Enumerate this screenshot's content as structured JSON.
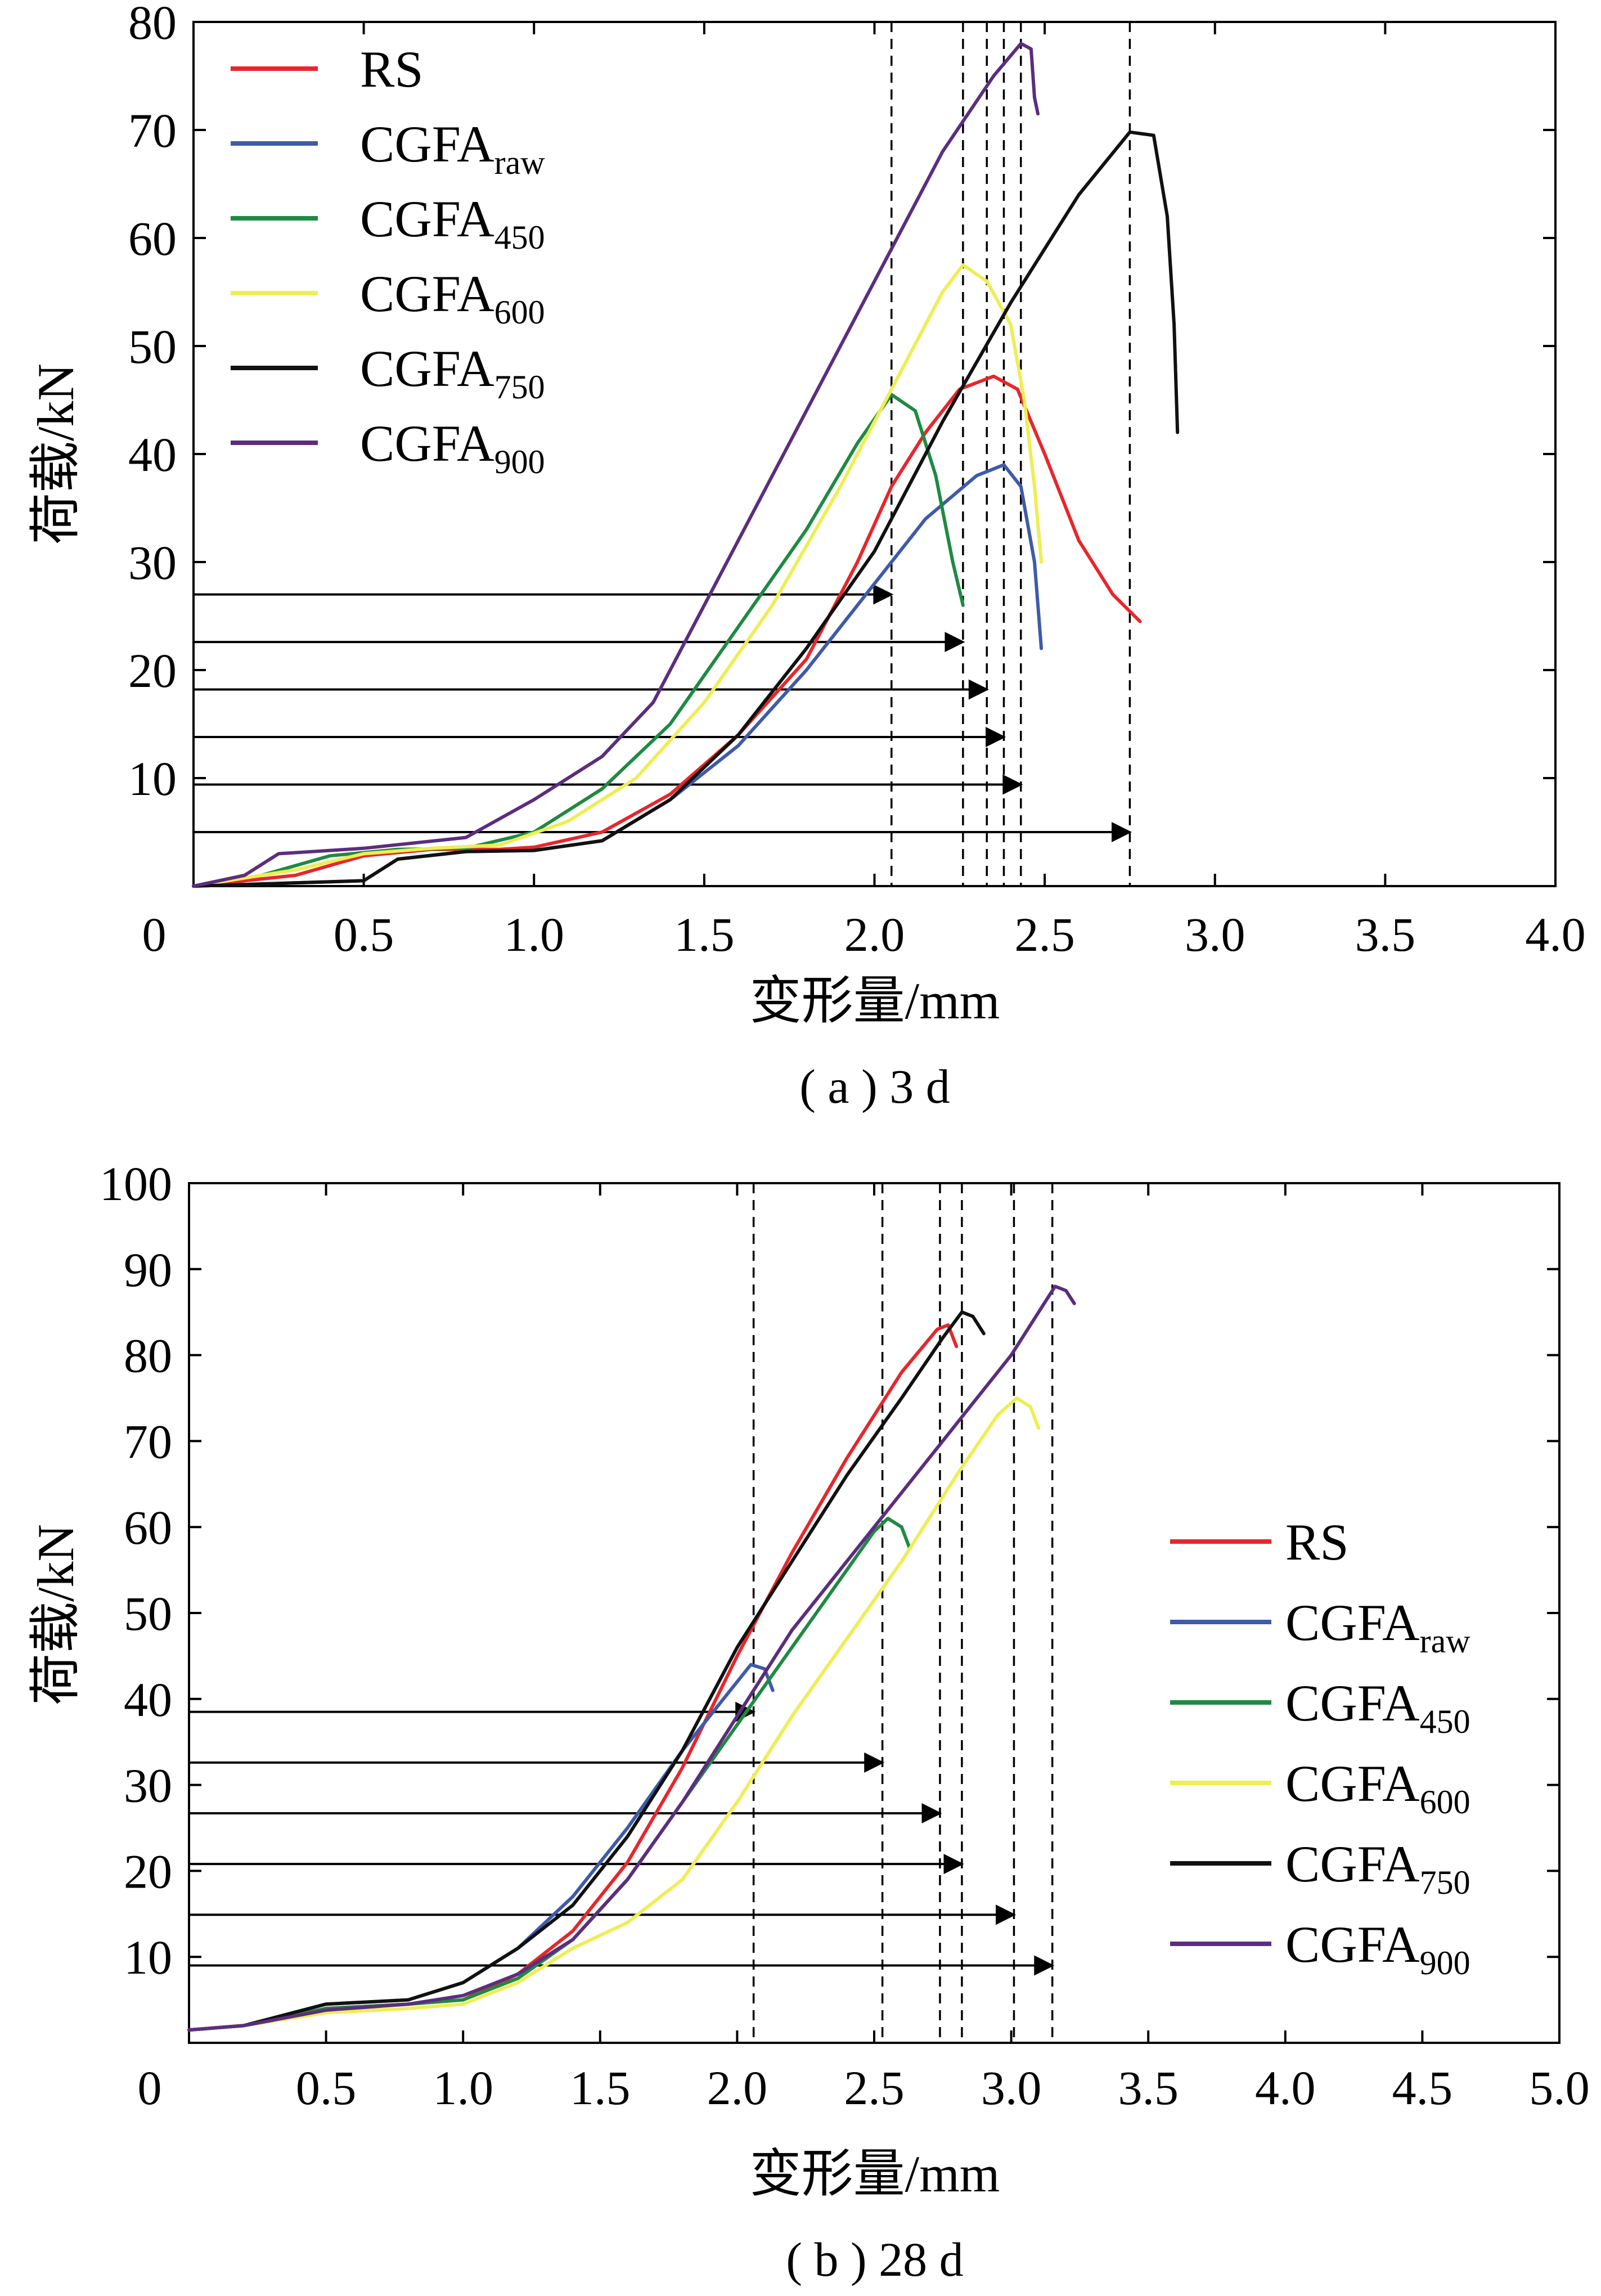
{
  "chart_data": [
    {
      "type": "line",
      "caption": "( a ) 3 d",
      "xlabel": "变形量/mm",
      "ylabel": "荷载/kN",
      "xlim": [
        0,
        4.0
      ],
      "ylim": [
        0,
        80
      ],
      "xticks": [
        "0",
        "0.5",
        "1.0",
        "1.5",
        "2.0",
        "2.5",
        "3.0",
        "3.5",
        "4.0"
      ],
      "yticks": [
        "10",
        "20",
        "30",
        "40",
        "50",
        "60",
        "70",
        "80"
      ],
      "legend_position": "top-left",
      "series": [
        {
          "name": "RS",
          "name_main": "RS",
          "name_sub": "",
          "color": "#e8262b",
          "points": [
            [
              0,
              0
            ],
            [
              0.3,
              1
            ],
            [
              0.5,
              2.8
            ],
            [
              0.7,
              3.4
            ],
            [
              0.9,
              3.4
            ],
            [
              1.0,
              3.6
            ],
            [
              1.2,
              5
            ],
            [
              1.4,
              8.5
            ],
            [
              1.6,
              14
            ],
            [
              1.8,
              21
            ],
            [
              1.95,
              30
            ],
            [
              2.05,
              37
            ],
            [
              2.15,
              42
            ],
            [
              2.25,
              46
            ],
            [
              2.35,
              47.2
            ],
            [
              2.42,
              46
            ],
            [
              2.5,
              40
            ],
            [
              2.6,
              32
            ],
            [
              2.7,
              27
            ],
            [
              2.78,
              24.5
            ]
          ]
        },
        {
          "name": "CGFAraw",
          "name_main": "CGFA",
          "name_sub": "raw",
          "color": "#3f5aa8",
          "points": [
            [
              0,
              0
            ],
            [
              0.5,
              0.5
            ],
            [
              0.6,
              2.5
            ],
            [
              0.8,
              3.2
            ],
            [
              1.0,
              3.3
            ],
            [
              1.2,
              4.2
            ],
            [
              1.4,
              8
            ],
            [
              1.6,
              13
            ],
            [
              1.8,
              20
            ],
            [
              2.0,
              28
            ],
            [
              2.15,
              34
            ],
            [
              2.3,
              38
            ],
            [
              2.38,
              39
            ],
            [
              2.43,
              37
            ],
            [
              2.47,
              30
            ],
            [
              2.49,
              22
            ]
          ]
        },
        {
          "name": "CGFA450",
          "name_main": "CGFA",
          "name_sub": "450",
          "color": "#1e8a42",
          "points": [
            [
              0,
              0
            ],
            [
              0.2,
              1
            ],
            [
              0.4,
              2.8
            ],
            [
              0.6,
              3.4
            ],
            [
              0.8,
              3.5
            ],
            [
              1.0,
              5
            ],
            [
              1.2,
              9
            ],
            [
              1.4,
              15
            ],
            [
              1.6,
              24
            ],
            [
              1.8,
              33
            ],
            [
              1.95,
              41
            ],
            [
              2.05,
              45.5
            ],
            [
              2.12,
              44
            ],
            [
              2.18,
              38
            ],
            [
              2.23,
              30
            ],
            [
              2.26,
              26
            ]
          ]
        },
        {
          "name": "CGFA600",
          "name_main": "CGFA",
          "name_sub": "600",
          "color": "#eeee55",
          "points": [
            [
              0,
              0
            ],
            [
              0.3,
              1.5
            ],
            [
              0.5,
              3
            ],
            [
              0.7,
              3.5
            ],
            [
              0.9,
              3.8
            ],
            [
              1.1,
              6
            ],
            [
              1.3,
              10
            ],
            [
              1.5,
              17
            ],
            [
              1.7,
              26
            ],
            [
              1.9,
              37
            ],
            [
              2.05,
              46
            ],
            [
              2.2,
              55
            ],
            [
              2.26,
              57.5
            ],
            [
              2.33,
              56
            ],
            [
              2.4,
              52
            ],
            [
              2.44,
              45
            ],
            [
              2.47,
              37
            ],
            [
              2.49,
              30
            ]
          ]
        },
        {
          "name": "CGFA750",
          "name_main": "CGFA",
          "name_sub": "750",
          "color": "#111111",
          "points": [
            [
              0,
              0
            ],
            [
              0.5,
              0.5
            ],
            [
              0.6,
              2.5
            ],
            [
              0.8,
              3.2
            ],
            [
              1.0,
              3.3
            ],
            [
              1.2,
              4.2
            ],
            [
              1.4,
              8
            ],
            [
              1.6,
              14
            ],
            [
              1.8,
              22
            ],
            [
              2.0,
              31
            ],
            [
              2.2,
              43
            ],
            [
              2.4,
              54
            ],
            [
              2.6,
              64
            ],
            [
              2.75,
              69.8
            ],
            [
              2.82,
              69.5
            ],
            [
              2.86,
              62
            ],
            [
              2.88,
              52
            ],
            [
              2.89,
              42
            ]
          ]
        },
        {
          "name": "CGFA900",
          "name_main": "CGFA",
          "name_sub": "900",
          "color": "#5c2d7e",
          "points": [
            [
              0,
              0
            ],
            [
              0.15,
              1
            ],
            [
              0.25,
              3
            ],
            [
              0.5,
              3.5
            ],
            [
              0.8,
              4.5
            ],
            [
              1.0,
              8
            ],
            [
              1.2,
              12
            ],
            [
              1.35,
              17
            ],
            [
              1.5,
              26
            ],
            [
              1.7,
              38
            ],
            [
              1.9,
              50
            ],
            [
              2.05,
              59
            ],
            [
              2.2,
              68
            ],
            [
              2.35,
              75
            ],
            [
              2.43,
              78
            ],
            [
              2.46,
              77.5
            ],
            [
              2.47,
              73
            ],
            [
              2.48,
              71.5
            ]
          ]
        }
      ],
      "reference_lines_x": [
        2.05,
        2.26,
        2.33,
        2.38,
        2.43,
        2.75
      ]
    },
    {
      "type": "line",
      "caption": "( b ) 28 d",
      "xlabel": "变形量/mm",
      "ylabel": "荷载/kN",
      "xlim": [
        0,
        5.0
      ],
      "ylim": [
        0,
        100
      ],
      "xticks": [
        "0",
        "0.5",
        "1.0",
        "1.5",
        "2.0",
        "2.5",
        "3.0",
        "3.5",
        "4.0",
        "4.5",
        "5.0"
      ],
      "yticks": [
        "10",
        "20",
        "30",
        "40",
        "50",
        "60",
        "70",
        "80",
        "90",
        "100"
      ],
      "legend_position": "center-right",
      "series": [
        {
          "name": "RS",
          "name_main": "RS",
          "name_sub": "",
          "color": "#e8262b",
          "points": [
            [
              0,
              1.5
            ],
            [
              0.2,
              2
            ],
            [
              0.5,
              4
            ],
            [
              0.8,
              4.5
            ],
            [
              1.0,
              5
            ],
            [
              1.2,
              8
            ],
            [
              1.4,
              13
            ],
            [
              1.6,
              21
            ],
            [
              1.8,
              32
            ],
            [
              2.0,
              45
            ],
            [
              2.2,
              57
            ],
            [
              2.4,
              68
            ],
            [
              2.6,
              78
            ],
            [
              2.73,
              83
            ],
            [
              2.77,
              83.5
            ],
            [
              2.8,
              81
            ]
          ]
        },
        {
          "name": "CGFAraw",
          "name_main": "CGFA",
          "name_sub": "raw",
          "color": "#3f5aa8",
          "points": [
            [
              0,
              1.5
            ],
            [
              0.2,
              2
            ],
            [
              0.5,
              4.5
            ],
            [
              0.8,
              5
            ],
            [
              1.0,
              7
            ],
            [
              1.2,
              11
            ],
            [
              1.4,
              17
            ],
            [
              1.6,
              25
            ],
            [
              1.8,
              34
            ],
            [
              1.95,
              40
            ],
            [
              2.05,
              44
            ],
            [
              2.1,
              43.5
            ],
            [
              2.13,
              41
            ]
          ]
        },
        {
          "name": "CGFA450",
          "name_main": "CGFA",
          "name_sub": "450",
          "color": "#1e8a42",
          "points": [
            [
              0,
              1.5
            ],
            [
              0.2,
              2
            ],
            [
              0.5,
              4
            ],
            [
              0.8,
              4.5
            ],
            [
              1.0,
              5
            ],
            [
              1.2,
              7.5
            ],
            [
              1.4,
              12
            ],
            [
              1.6,
              19
            ],
            [
              1.8,
              28
            ],
            [
              2.0,
              37
            ],
            [
              2.2,
              46
            ],
            [
              2.4,
              55
            ],
            [
              2.5,
              59.5
            ],
            [
              2.55,
              61
            ],
            [
              2.6,
              60
            ],
            [
              2.63,
              57.5
            ]
          ]
        },
        {
          "name": "CGFA600",
          "name_main": "CGFA",
          "name_sub": "600",
          "color": "#eeee55",
          "points": [
            [
              0,
              1.5
            ],
            [
              0.2,
              2
            ],
            [
              0.5,
              3.5
            ],
            [
              0.8,
              4
            ],
            [
              1.0,
              4.5
            ],
            [
              1.2,
              7
            ],
            [
              1.4,
              11
            ],
            [
              1.6,
              14
            ],
            [
              1.8,
              19
            ],
            [
              2.0,
              28
            ],
            [
              2.2,
              38
            ],
            [
              2.4,
              47
            ],
            [
              2.6,
              56
            ],
            [
              2.8,
              66
            ],
            [
              2.95,
              73
            ],
            [
              3.02,
              75
            ],
            [
              3.07,
              74
            ],
            [
              3.1,
              71.5
            ]
          ]
        },
        {
          "name": "CGFA750",
          "name_main": "CGFA",
          "name_sub": "750",
          "color": "#111111",
          "points": [
            [
              0,
              1.5
            ],
            [
              0.2,
              2
            ],
            [
              0.5,
              4.5
            ],
            [
              0.8,
              5
            ],
            [
              1.0,
              7
            ],
            [
              1.2,
              11
            ],
            [
              1.4,
              16
            ],
            [
              1.6,
              24
            ],
            [
              1.8,
              34
            ],
            [
              2.0,
              46
            ],
            [
              2.2,
              56
            ],
            [
              2.4,
              66
            ],
            [
              2.6,
              75
            ],
            [
              2.75,
              82
            ],
            [
              2.82,
              85
            ],
            [
              2.86,
              84.5
            ],
            [
              2.9,
              82.5
            ]
          ]
        },
        {
          "name": "CGFA900",
          "name_main": "CGFA",
          "name_sub": "900",
          "color": "#5c2d7e",
          "points": [
            [
              0,
              1.5
            ],
            [
              0.2,
              2
            ],
            [
              0.5,
              3.8
            ],
            [
              0.8,
              4.5
            ],
            [
              1.0,
              5.5
            ],
            [
              1.2,
              8
            ],
            [
              1.4,
              12
            ],
            [
              1.6,
              19
            ],
            [
              1.8,
              28
            ],
            [
              2.0,
              38
            ],
            [
              2.2,
              48
            ],
            [
              2.4,
              56
            ],
            [
              2.6,
              64
            ],
            [
              2.8,
              72
            ],
            [
              3.0,
              80
            ],
            [
              3.1,
              85
            ],
            [
              3.16,
              88
            ],
            [
              3.2,
              87.5
            ],
            [
              3.23,
              86
            ]
          ]
        }
      ],
      "reference_lines_x": [
        2.06,
        2.53,
        2.74,
        2.82,
        3.01,
        3.15
      ]
    }
  ]
}
